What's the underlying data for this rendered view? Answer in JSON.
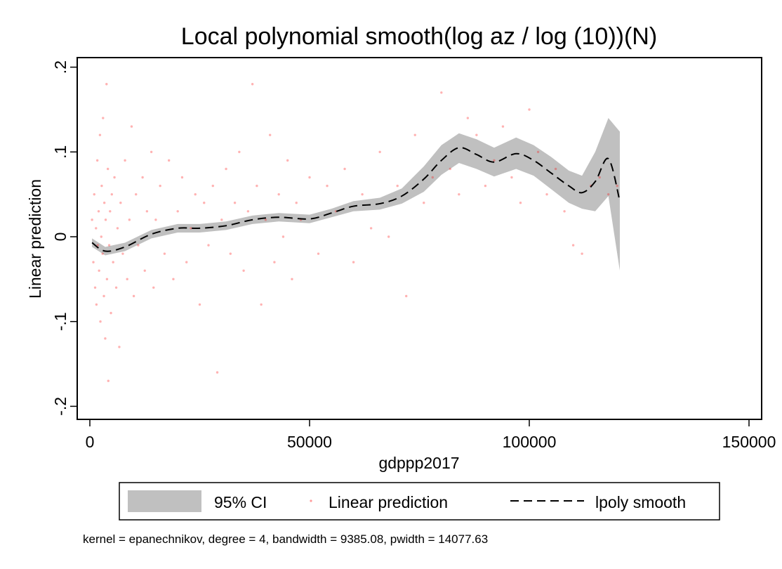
{
  "chart_data": {
    "type": "scatter",
    "title": "Local polynomial smooth(log az / log (10))(N)",
    "xlabel": "gdppp2017",
    "ylabel": "Linear prediction",
    "xlim": [
      -3000,
      153000
    ],
    "ylim": [
      -0.215,
      0.212
    ],
    "xticks": [
      0,
      50000,
      100000,
      150000
    ],
    "xtick_labels": [
      "0",
      "50000",
      "100000",
      "150000"
    ],
    "yticks": [
      0.2,
      0.1,
      0,
      -0.1,
      -0.2
    ],
    "ytick_labels": [
      ".2",
      ".1",
      "0",
      "-.1",
      "-.2"
    ],
    "grid": false,
    "legend": {
      "placement": "bottom",
      "entries": [
        {
          "label": "95% CI",
          "kind": "area"
        },
        {
          "label": "Linear prediction",
          "kind": "marker"
        },
        {
          "label": "lpoly smooth",
          "kind": "dashed-line"
        }
      ]
    },
    "note": "kernel = epanechnikov, degree = 4, bandwidth = 9385.08, pwidth = 14077.63",
    "colors": {
      "scatter": "#ff0000",
      "ci": "#c0c0c0",
      "smooth": "#000000"
    },
    "smooth": {
      "x": [
        500,
        3500,
        8000,
        14000,
        20000,
        25000,
        31000,
        37000,
        43000,
        50000,
        55000,
        60000,
        66000,
        71000,
        76000,
        80000,
        84000,
        88000,
        92000,
        97000,
        101000,
        105000,
        109000,
        112000,
        115000,
        118000,
        120600
      ],
      "y": [
        -0.007,
        -0.017,
        -0.012,
        0.003,
        0.01,
        0.01,
        0.013,
        0.02,
        0.023,
        0.021,
        0.028,
        0.036,
        0.039,
        0.048,
        0.068,
        0.09,
        0.105,
        0.097,
        0.088,
        0.098,
        0.09,
        0.075,
        0.06,
        0.052,
        0.065,
        0.092,
        0.042
      ]
    },
    "ci_upper": [
      -0.002,
      -0.012,
      -0.007,
      0.008,
      0.015,
      0.015,
      0.018,
      0.025,
      0.028,
      0.026,
      0.033,
      0.042,
      0.046,
      0.057,
      0.083,
      0.108,
      0.122,
      0.115,
      0.105,
      0.117,
      0.108,
      0.094,
      0.078,
      0.072,
      0.1,
      0.14,
      0.124
    ],
    "ci_lower": [
      -0.012,
      -0.022,
      -0.017,
      -0.002,
      0.005,
      0.005,
      0.008,
      0.015,
      0.018,
      0.016,
      0.023,
      0.03,
      0.032,
      0.039,
      0.053,
      0.073,
      0.087,
      0.08,
      0.071,
      0.08,
      0.072,
      0.056,
      0.04,
      0.033,
      0.03,
      0.048,
      -0.04
    ],
    "points": [
      [
        500,
        0.02
      ],
      [
        800,
        -0.03
      ],
      [
        1000,
        0.05
      ],
      [
        1200,
        -0.06
      ],
      [
        1400,
        0.01
      ],
      [
        1500,
        -0.08
      ],
      [
        1700,
        0.09
      ],
      [
        1800,
        -0.01
      ],
      [
        2000,
        0.03
      ],
      [
        2100,
        -0.04
      ],
      [
        2300,
        0.12
      ],
      [
        2400,
        -0.1
      ],
      [
        2600,
        0.0
      ],
      [
        2700,
        0.06
      ],
      [
        2900,
        -0.02
      ],
      [
        3000,
        0.14
      ],
      [
        3200,
        -0.07
      ],
      [
        3300,
        0.04
      ],
      [
        3500,
        -0.12
      ],
      [
        3600,
        0.02
      ],
      [
        3800,
        0.18
      ],
      [
        3900,
        -0.05
      ],
      [
        4100,
        0.08
      ],
      [
        4200,
        -0.17
      ],
      [
        4400,
        -0.01
      ],
      [
        4600,
        0.03
      ],
      [
        4800,
        -0.09
      ],
      [
        5000,
        0.05
      ],
      [
        5300,
        -0.03
      ],
      [
        5600,
        0.07
      ],
      [
        6000,
        -0.06
      ],
      [
        6300,
        0.01
      ],
      [
        6700,
        -0.13
      ],
      [
        7000,
        0.04
      ],
      [
        7500,
        -0.02
      ],
      [
        8000,
        0.09
      ],
      [
        8500,
        -0.05
      ],
      [
        9000,
        0.02
      ],
      [
        9500,
        0.13
      ],
      [
        10000,
        -0.07
      ],
      [
        10500,
        0.05
      ],
      [
        11000,
        -0.01
      ],
      [
        12000,
        0.07
      ],
      [
        12500,
        -0.04
      ],
      [
        13000,
        0.03
      ],
      [
        14000,
        0.1
      ],
      [
        14500,
        -0.06
      ],
      [
        15000,
        0.02
      ],
      [
        16000,
        0.06
      ],
      [
        17000,
        -0.02
      ],
      [
        18000,
        0.09
      ],
      [
        19000,
        -0.05
      ],
      [
        20000,
        0.03
      ],
      [
        21000,
        0.07
      ],
      [
        22000,
        -0.03
      ],
      [
        23000,
        0.01
      ],
      [
        24000,
        0.05
      ],
      [
        25000,
        -0.08
      ],
      [
        26000,
        0.04
      ],
      [
        27000,
        -0.01
      ],
      [
        28000,
        0.06
      ],
      [
        29000,
        -0.16
      ],
      [
        30000,
        0.02
      ],
      [
        31000,
        0.08
      ],
      [
        32000,
        -0.02
      ],
      [
        33000,
        0.04
      ],
      [
        34000,
        0.1
      ],
      [
        35000,
        -0.04
      ],
      [
        36000,
        0.03
      ],
      [
        37000,
        0.18
      ],
      [
        38000,
        0.06
      ],
      [
        39000,
        -0.08
      ],
      [
        40000,
        0.02
      ],
      [
        41000,
        0.12
      ],
      [
        42000,
        -0.03
      ],
      [
        43000,
        0.05
      ],
      [
        44000,
        0.0
      ],
      [
        45000,
        0.09
      ],
      [
        46000,
        -0.05
      ],
      [
        47000,
        0.04
      ],
      [
        48000,
        0.02
      ],
      [
        50000,
        0.07
      ],
      [
        52000,
        -0.02
      ],
      [
        54000,
        0.06
      ],
      [
        56000,
        0.03
      ],
      [
        58000,
        0.08
      ],
      [
        60000,
        -0.03
      ],
      [
        62000,
        0.05
      ],
      [
        64000,
        0.01
      ],
      [
        66000,
        0.1
      ],
      [
        68000,
        0.0
      ],
      [
        70000,
        0.06
      ],
      [
        72000,
        -0.07
      ],
      [
        74000,
        0.12
      ],
      [
        76000,
        0.04
      ],
      [
        78000,
        0.07
      ],
      [
        80000,
        0.17
      ],
      [
        82000,
        0.08
      ],
      [
        84000,
        0.05
      ],
      [
        86000,
        0.14
      ],
      [
        88000,
        0.12
      ],
      [
        90000,
        0.06
      ],
      [
        92000,
        0.09
      ],
      [
        94000,
        0.13
      ],
      [
        96000,
        0.07
      ],
      [
        98000,
        0.04
      ],
      [
        100000,
        0.15
      ],
      [
        102000,
        0.1
      ],
      [
        104000,
        0.05
      ],
      [
        106000,
        0.08
      ],
      [
        108000,
        0.03
      ],
      [
        110000,
        -0.01
      ],
      [
        112000,
        -0.02
      ],
      [
        114000,
        0.06
      ],
      [
        116000,
        0.07
      ],
      [
        118000,
        0.05
      ],
      [
        120000,
        0.06
      ]
    ]
  }
}
